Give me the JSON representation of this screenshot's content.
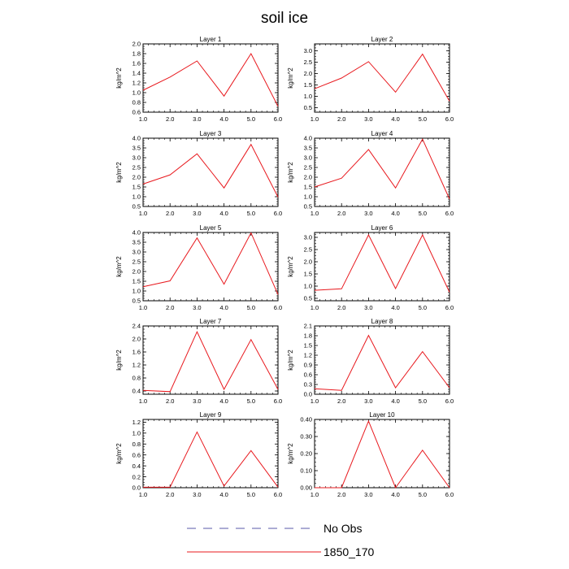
{
  "figure": {
    "title": "soil ice"
  },
  "legend": {
    "items": [
      {
        "label": "No Obs",
        "color": "#5a5aa8",
        "style": "dashed"
      },
      {
        "label": "1850_170",
        "color": "#e8191e",
        "style": "solid"
      }
    ]
  },
  "chart_data": [
    {
      "type": "line",
      "title": "Layer 1",
      "ylabel": "kg/m^2",
      "x": [
        1,
        2,
        3,
        4,
        5,
        6
      ],
      "xlim": [
        1,
        6
      ],
      "xticks": [
        "1.0",
        "2.0",
        "3.0",
        "4.0",
        "5.0",
        "6.0"
      ],
      "ylim": [
        0.6,
        2.0
      ],
      "yticks": [
        "0.6",
        "0.8",
        "1.0",
        "1.2",
        "1.4",
        "1.6",
        "1.8",
        "2.0"
      ],
      "series": [
        {
          "name": "1850_170",
          "color": "#e8191e",
          "values": [
            1.05,
            1.32,
            1.65,
            0.93,
            1.8,
            0.72
          ]
        }
      ]
    },
    {
      "type": "line",
      "title": "Layer 2",
      "ylabel": "kg/m^2",
      "x": [
        1,
        2,
        3,
        4,
        5,
        6
      ],
      "xlim": [
        1,
        6
      ],
      "xticks": [
        "1.0",
        "2.0",
        "3.0",
        "4.0",
        "5.0",
        "6.0"
      ],
      "ylim": [
        0.3,
        3.3
      ],
      "yticks": [
        "0.5",
        "1.0",
        "1.5",
        "2.0",
        "2.5",
        "3.0"
      ],
      "series": [
        {
          "name": "1850_170",
          "color": "#e8191e",
          "values": [
            1.33,
            1.8,
            2.52,
            1.18,
            2.85,
            0.78
          ]
        }
      ]
    },
    {
      "type": "line",
      "title": "Layer 3",
      "ylabel": "kg/m^2",
      "x": [
        1,
        2,
        3,
        4,
        5,
        6
      ],
      "xlim": [
        1,
        6
      ],
      "xticks": [
        "1.0",
        "2.0",
        "3.0",
        "4.0",
        "5.0",
        "6.0"
      ],
      "ylim": [
        0.5,
        4.0
      ],
      "yticks": [
        "0.5",
        "1.0",
        "1.5",
        "2.0",
        "2.5",
        "3.0",
        "3.5",
        "4.0"
      ],
      "series": [
        {
          "name": "1850_170",
          "color": "#e8191e",
          "values": [
            1.65,
            2.12,
            3.2,
            1.45,
            3.68,
            0.98
          ]
        }
      ]
    },
    {
      "type": "line",
      "title": "Layer 4",
      "ylabel": "kg/m^2",
      "x": [
        1,
        2,
        3,
        4,
        5,
        6
      ],
      "xlim": [
        1,
        6
      ],
      "xticks": [
        "1.0",
        "2.0",
        "3.0",
        "4.0",
        "5.0",
        "6.0"
      ],
      "ylim": [
        0.5,
        4.0
      ],
      "yticks": [
        "0.5",
        "1.0",
        "1.5",
        "2.0",
        "2.5",
        "3.0",
        "3.5",
        "4.0"
      ],
      "series": [
        {
          "name": "1850_170",
          "color": "#e8191e",
          "values": [
            1.5,
            1.95,
            3.42,
            1.45,
            3.95,
            0.88
          ]
        }
      ]
    },
    {
      "type": "line",
      "title": "Layer 5",
      "ylabel": "kg/m^2",
      "x": [
        1,
        2,
        3,
        4,
        5,
        6
      ],
      "xlim": [
        1,
        6
      ],
      "xticks": [
        "1.0",
        "2.0",
        "3.0",
        "4.0",
        "5.0",
        "6.0"
      ],
      "ylim": [
        0.5,
        4.0
      ],
      "yticks": [
        "0.5",
        "1.0",
        "1.5",
        "2.0",
        "2.5",
        "3.0",
        "3.5",
        "4.0"
      ],
      "series": [
        {
          "name": "1850_170",
          "color": "#e8191e",
          "values": [
            1.22,
            1.52,
            3.72,
            1.35,
            3.98,
            0.82
          ]
        }
      ]
    },
    {
      "type": "line",
      "title": "Layer 6",
      "ylabel": "kg/m^2",
      "x": [
        1,
        2,
        3,
        4,
        5,
        6
      ],
      "xlim": [
        1,
        6
      ],
      "xticks": [
        "1.0",
        "2.0",
        "3.0",
        "4.0",
        "5.0",
        "6.0"
      ],
      "ylim": [
        0.4,
        3.2
      ],
      "yticks": [
        "0.5",
        "1.0",
        "1.5",
        "2.0",
        "2.5",
        "3.0"
      ],
      "series": [
        {
          "name": "1850_170",
          "color": "#e8191e",
          "values": [
            0.83,
            0.89,
            3.1,
            0.9,
            3.1,
            0.75
          ]
        }
      ]
    },
    {
      "type": "line",
      "title": "Layer 7",
      "ylabel": "kg/m^2",
      "x": [
        1,
        2,
        3,
        4,
        5,
        6
      ],
      "xlim": [
        1,
        6
      ],
      "xticks": [
        "1.0",
        "2.0",
        "3.0",
        "4.0",
        "5.0",
        "6.0"
      ],
      "ylim": [
        0.3,
        2.4
      ],
      "yticks": [
        "0.4",
        "0.8",
        "1.2",
        "1.6",
        "2.0",
        "2.4"
      ],
      "series": [
        {
          "name": "1850_170",
          "color": "#e8191e",
          "values": [
            0.42,
            0.38,
            2.22,
            0.45,
            1.98,
            0.45
          ]
        }
      ]
    },
    {
      "type": "line",
      "title": "Layer 8",
      "ylabel": "kg/m^2",
      "x": [
        1,
        2,
        3,
        4,
        5,
        6
      ],
      "xlim": [
        1,
        6
      ],
      "xticks": [
        "1.0",
        "2.0",
        "3.0",
        "4.0",
        "5.0",
        "6.0"
      ],
      "ylim": [
        0.0,
        2.1
      ],
      "yticks": [
        "0.0",
        "0.3",
        "0.6",
        "0.9",
        "1.2",
        "1.5",
        "1.8",
        "2.1"
      ],
      "series": [
        {
          "name": "1850_170",
          "color": "#e8191e",
          "values": [
            0.17,
            0.12,
            1.81,
            0.2,
            1.31,
            0.2
          ]
        }
      ]
    },
    {
      "type": "line",
      "title": "Layer 9",
      "ylabel": "kg/m^2",
      "x": [
        1,
        2,
        3,
        4,
        5,
        6
      ],
      "xlim": [
        1,
        6
      ],
      "xticks": [
        "1.0",
        "2.0",
        "3.0",
        "4.0",
        "5.0",
        "6.0"
      ],
      "ylim": [
        0.0,
        1.25
      ],
      "yticks": [
        "0.0",
        "0.2",
        "0.4",
        "0.6",
        "0.8",
        "1.0",
        "1.2"
      ],
      "series": [
        {
          "name": "1850_170",
          "color": "#e8191e",
          "values": [
            0.01,
            0.01,
            1.02,
            0.03,
            0.68,
            0.01
          ]
        }
      ]
    },
    {
      "type": "line",
      "title": "Layer 10",
      "ylabel": "kg/m^2",
      "x": [
        1,
        2,
        3,
        4,
        5,
        6
      ],
      "xlim": [
        1,
        6
      ],
      "xticks": [
        "1.0",
        "2.0",
        "3.0",
        "4.0",
        "5.0",
        "6.0"
      ],
      "ylim": [
        0.0,
        0.4
      ],
      "yticks": [
        "0.00",
        "0.10",
        "0.20",
        "0.30",
        "0.40"
      ],
      "series": [
        {
          "name": "1850_170",
          "color": "#e8191e",
          "values": [
            0.0,
            0.0,
            0.39,
            0.0,
            0.22,
            0.0
          ]
        }
      ]
    }
  ]
}
